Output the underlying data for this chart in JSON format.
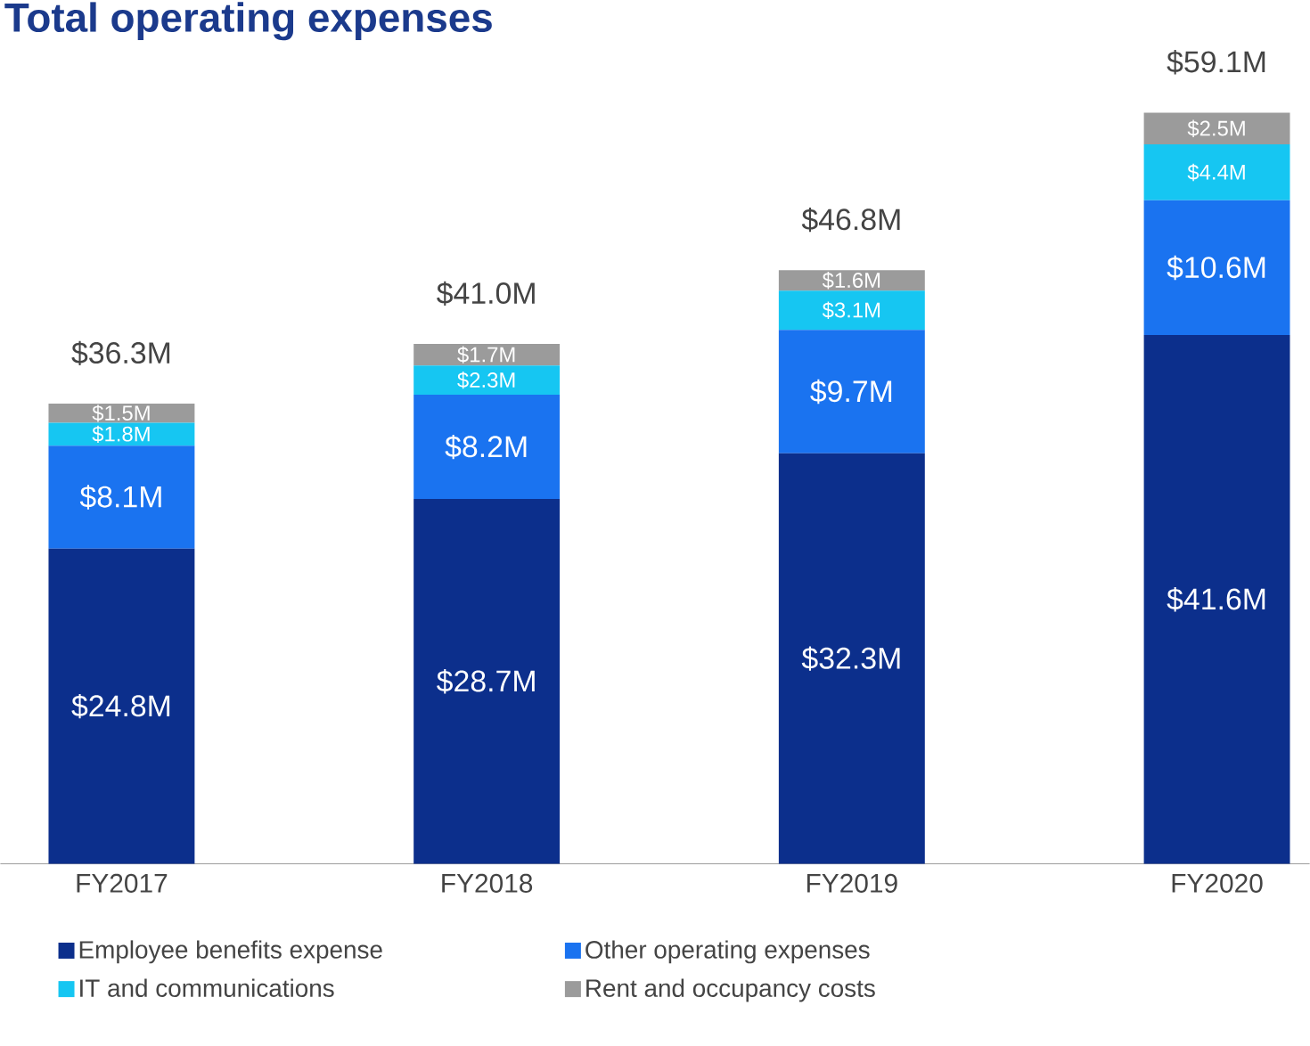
{
  "chart_data": {
    "type": "bar",
    "stacked": true,
    "title": "Total operating expenses",
    "categories": [
      "FY2017",
      "FY2018",
      "FY2019",
      "FY2020"
    ],
    "series": [
      {
        "name": "Employee benefits expense",
        "color": "#0c2f8c",
        "values": [
          24.8,
          28.7,
          32.3,
          41.6
        ],
        "value_labels": [
          "$24.8M",
          "$28.7M",
          "$32.3M",
          "$41.6M"
        ]
      },
      {
        "name": "Other operating expenses",
        "color": "#1a73f0",
        "values": [
          8.1,
          8.2,
          9.7,
          10.6
        ],
        "value_labels": [
          "$8.1M",
          "$8.2M",
          "$9.7M",
          "$10.6M"
        ]
      },
      {
        "name": "IT and communications",
        "color": "#16c6f2",
        "values": [
          1.8,
          2.3,
          3.1,
          4.4
        ],
        "value_labels": [
          "$1.8M",
          "$2.3M",
          "$3.1M",
          "$4.4M"
        ]
      },
      {
        "name": "Rent and occupancy costs",
        "color": "#9b9b9b",
        "values": [
          1.5,
          1.7,
          1.6,
          2.5
        ],
        "value_labels": [
          "$1.5M",
          "$1.7M",
          "$1.6M",
          "$2.5M"
        ]
      }
    ],
    "totals": [
      "$36.3M",
      "$41.0M",
      "$46.8M",
      "$59.1M"
    ],
    "legend": "bottom"
  }
}
